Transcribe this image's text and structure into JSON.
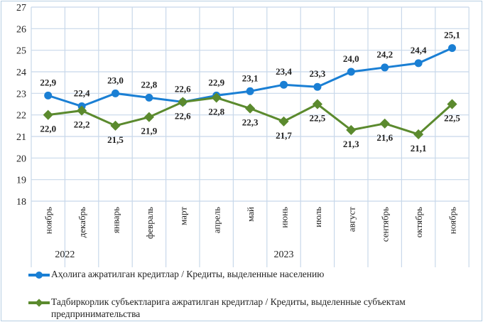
{
  "chart_data": {
    "type": "line",
    "categories": [
      "ноябрь",
      "декабрь",
      "январь",
      "февраль",
      "март",
      "апрель",
      "май",
      "июнь",
      "июль",
      "август",
      "сентябрь",
      "октябрь",
      "ноябрь"
    ],
    "year_groups": [
      {
        "label": "2022",
        "count": 2
      },
      {
        "label": "2023",
        "count": 11
      }
    ],
    "ylim": [
      18,
      27
    ],
    "yticks": [
      18,
      19,
      20,
      21,
      22,
      23,
      24,
      25,
      26,
      27
    ],
    "grid": true,
    "legend_position": "bottom",
    "series": [
      {
        "name": "Аҳолига ажратилган кредитлар / Кредиты, выделенные населению",
        "color": "#1a7fd4",
        "marker": "circle",
        "values": [
          22.9,
          22.4,
          23.0,
          22.8,
          22.6,
          22.9,
          23.1,
          23.4,
          23.3,
          24.0,
          24.2,
          24.4,
          25.1
        ],
        "labels": [
          "22,9",
          "22,4",
          "23,0",
          "22,8",
          "22,6",
          "22,9",
          "23,1",
          "23,4",
          "23,3",
          "24,0",
          "24,2",
          "24,4",
          "25,1"
        ]
      },
      {
        "name": "Тадбиркорлик субъектларига ажратилган кредитлар / Кредиты, выделенные субъектам предпринимательства",
        "color": "#5b8a2e",
        "marker": "diamond",
        "values": [
          22.0,
          22.2,
          21.5,
          21.9,
          22.6,
          22.8,
          22.3,
          21.7,
          22.5,
          21.3,
          21.6,
          21.1,
          22.5
        ],
        "labels": [
          "22,0",
          "22,2",
          "21,5",
          "21,9",
          "22,6",
          "22,8",
          "22,3",
          "21,7",
          "22,5",
          "21,3",
          "21,6",
          "21,1",
          "22,5"
        ]
      }
    ]
  }
}
